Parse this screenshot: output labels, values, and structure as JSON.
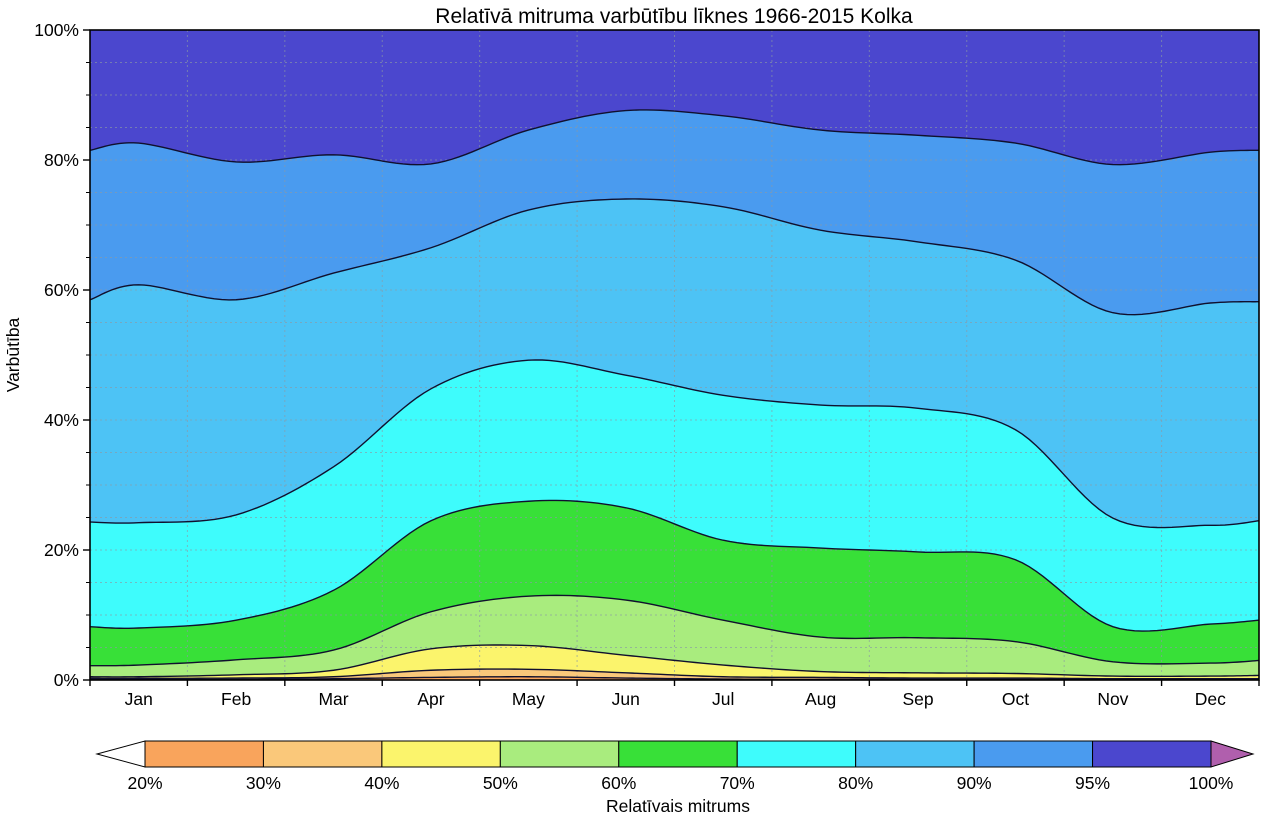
{
  "title": "Relatīvā mitruma varbūtību līknes 1966-2015 Kolka",
  "y_axis": {
    "label": "Varbūtība",
    "tick_labels": [
      "0%",
      "20%",
      "40%",
      "60%",
      "80%",
      "100%"
    ],
    "tick_values": [
      0,
      20,
      40,
      60,
      80,
      100
    ],
    "minor_grid_step_percent": 5
  },
  "x_axis": {
    "month_labels": [
      "Jan",
      "Feb",
      "Mar",
      "Apr",
      "May",
      "Jun",
      "Jul",
      "Aug",
      "Sep",
      "Oct",
      "Nov",
      "Dec"
    ]
  },
  "colorbar": {
    "label": "Relatīvais mitrums",
    "tick_labels": [
      "20%",
      "30%",
      "40%",
      "50%",
      "60%",
      "70%",
      "80%",
      "90%",
      "95%",
      "100%"
    ],
    "segment_colors": [
      "#f9a45c",
      "#fac87a",
      "#fbf46c",
      "#a9ec7e",
      "#38e038",
      "#3efcfc",
      "#4dc3f5",
      "#4a9bef",
      "#4b47ce"
    ],
    "underflow_arrow_color": "#ffffff",
    "overflow_arrow_color": "#b05fad"
  },
  "chart_data": {
    "type": "area",
    "title": "Relatīvā mitruma varbūtību līknes 1966-2015 Kolka",
    "xlabel": "",
    "ylabel": "Varbūtība",
    "ylim": [
      0,
      100
    ],
    "grid": "dotted gray, horizontal every 5%, vertical at month boundaries",
    "legend_position": "horizontal colorbar below plot, labeled Relatīvais mitrums",
    "x_categories": [
      "Jan",
      "Feb",
      "Mar",
      "Apr",
      "May",
      "Jun",
      "Jul",
      "Aug",
      "Sep",
      "Oct",
      "Nov",
      "Dec"
    ],
    "values_note": "Cumulative probability (%) that relative humidity <= band upper threshold; 14 values = [left edge, Jan..Dec, right edge]",
    "bands": [
      {
        "label": "20-30%",
        "color": "#f9a45c",
        "upper": [
          0.1,
          0.1,
          0.1,
          0.2,
          0.4,
          0.5,
          0.3,
          0.15,
          0.1,
          0.1,
          0.1,
          0.05,
          0.05,
          0.05
        ]
      },
      {
        "label": "30-40%",
        "color": "#fac87a",
        "upper": [
          0.25,
          0.25,
          0.3,
          0.5,
          1.5,
          1.65,
          1.1,
          0.5,
          0.4,
          0.3,
          0.3,
          0.2,
          0.2,
          0.2
        ]
      },
      {
        "label": "40-50%",
        "color": "#fbf46c",
        "upper": [
          0.5,
          0.5,
          0.8,
          1.5,
          4.8,
          5.3,
          3.8,
          2.3,
          1.3,
          1.1,
          1.0,
          0.6,
          0.6,
          0.7
        ]
      },
      {
        "label": "50-60%",
        "color": "#a9ec7e",
        "upper": [
          2.2,
          2.3,
          3.1,
          4.6,
          10.5,
          12.9,
          12.3,
          9.2,
          6.6,
          6.5,
          5.9,
          2.8,
          2.6,
          3.0
        ]
      },
      {
        "label": "60-70%",
        "color": "#38e038",
        "upper": [
          8.2,
          8.0,
          9.2,
          13.8,
          24.5,
          27.5,
          26.5,
          21.5,
          20.3,
          19.7,
          18.5,
          8.2,
          8.6,
          9.2
        ]
      },
      {
        "label": "70-80%",
        "color": "#3efcfc",
        "upper": [
          24.3,
          24.2,
          25.4,
          32.8,
          44.8,
          49.2,
          46.9,
          43.8,
          42.3,
          41.8,
          38.5,
          24.9,
          23.8,
          24.5
        ]
      },
      {
        "label": "80-90%",
        "color": "#4dc3f5",
        "upper": [
          58.5,
          60.8,
          58.5,
          62.6,
          66.5,
          72.3,
          74.0,
          72.8,
          69.2,
          67.4,
          64.6,
          56.5,
          58.0,
          58.2
        ]
      },
      {
        "label": "90-95%",
        "color": "#4a9bef",
        "upper": [
          81.5,
          82.6,
          79.7,
          80.8,
          79.4,
          84.6,
          87.6,
          86.8,
          84.6,
          83.8,
          82.6,
          79.3,
          81.2,
          81.5
        ]
      },
      {
        "label": "95-100%",
        "color": "#4b47ce",
        "upper": [
          100,
          100,
          100,
          100,
          100,
          100,
          100,
          100,
          100,
          100,
          100,
          100,
          100,
          100
        ]
      }
    ]
  },
  "style": {
    "contour_line_color": "#10102e",
    "grid_color": "#8a9aa5",
    "spine_color": "#000000"
  }
}
